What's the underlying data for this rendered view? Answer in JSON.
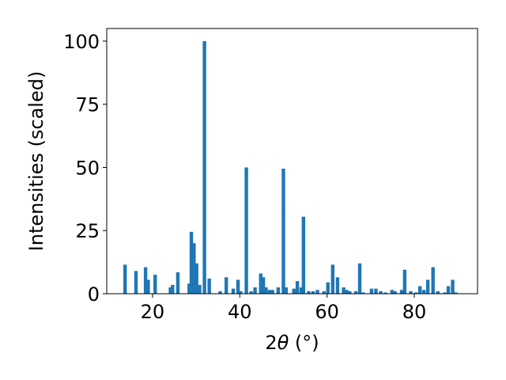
{
  "chart_data": {
    "type": "bar",
    "xlabel_prefix": "2",
    "xlabel_theta": "θ",
    "xlabel_unit": " (°)",
    "ylabel": "Intensities (scaled)",
    "xlim": [
      9.5,
      94.5
    ],
    "ylim": [
      0,
      105
    ],
    "xticks": [
      20,
      40,
      60,
      80
    ],
    "yticks": [
      0,
      25,
      50,
      75,
      100
    ],
    "bar_color": "#1f77b4",
    "bar_width": 0.8,
    "x": [
      13.7,
      16.2,
      18.4,
      19.0,
      20.6,
      24.1,
      24.6,
      25.8,
      28.4,
      28.9,
      29.5,
      30.1,
      30.8,
      31.9,
      33.0,
      35.5,
      36.9,
      38.5,
      39.6,
      40.2,
      41.5,
      42.6,
      43.5,
      44.8,
      45.4,
      46.0,
      46.8,
      47.5,
      48.8,
      50.0,
      50.6,
      52.4,
      53.2,
      54.1,
      54.6,
      55.8,
      56.8,
      57.8,
      59.3,
      60.2,
      61.3,
      62.4,
      63.8,
      64.5,
      65.2,
      66.6,
      67.5,
      68.3,
      70.2,
      71.2,
      72.3,
      73.4,
      74.9,
      75.6,
      77.1,
      77.8,
      79.2,
      80.4,
      81.3,
      82.2,
      83.1,
      84.3,
      85.4,
      87.0,
      87.8,
      88.8,
      89.5
    ],
    "values": [
      11.5,
      9.0,
      10.5,
      5.5,
      7.5,
      2.5,
      3.5,
      8.5,
      4.0,
      24.5,
      20.0,
      12.0,
      3.5,
      100.0,
      6.0,
      1.0,
      6.5,
      2.0,
      5.5,
      1.0,
      50.0,
      1.0,
      2.5,
      8.0,
      6.5,
      2.5,
      1.5,
      1.5,
      2.5,
      49.5,
      2.5,
      2.0,
      5.0,
      2.5,
      30.5,
      1.0,
      1.0,
      1.5,
      1.0,
      4.5,
      11.5,
      6.5,
      2.5,
      1.5,
      1.0,
      1.0,
      12.0,
      0.5,
      2.0,
      2.0,
      1.0,
      0.5,
      1.5,
      1.0,
      1.5,
      9.5,
      1.0,
      0.5,
      3.0,
      1.5,
      5.5,
      10.5,
      1.0,
      0.5,
      3.0,
      5.5,
      0.5
    ]
  }
}
